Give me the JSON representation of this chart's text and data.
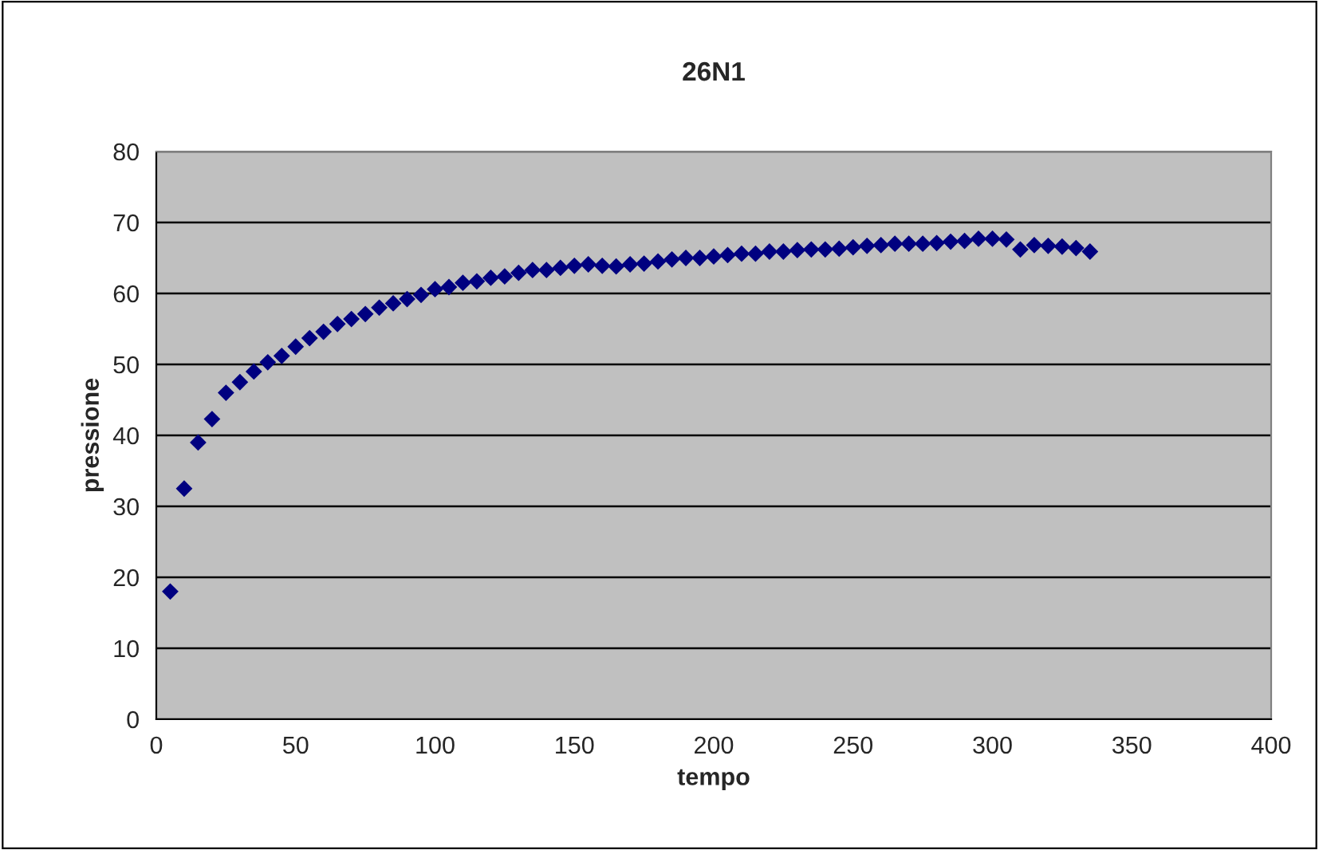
{
  "chart_data": {
    "type": "scatter",
    "title": "26N1",
    "xlabel": "tempo",
    "ylabel": "pressione",
    "x": [
      5,
      10,
      15,
      20,
      25,
      30,
      35,
      40,
      45,
      50,
      55,
      60,
      65,
      70,
      75,
      80,
      85,
      90,
      95,
      100,
      105,
      110,
      115,
      120,
      125,
      130,
      135,
      140,
      145,
      150,
      155,
      160,
      165,
      170,
      175,
      180,
      185,
      190,
      195,
      200,
      205,
      210,
      215,
      220,
      225,
      230,
      235,
      240,
      245,
      250,
      255,
      260,
      265,
      270,
      275,
      280,
      285,
      290,
      295,
      300,
      305,
      310,
      315,
      320,
      325,
      330,
      335
    ],
    "series": [
      {
        "color": "#000080",
        "values": [
          18,
          32.5,
          39,
          42.3,
          46,
          47.5,
          49,
          50.3,
          51.2,
          52.5,
          53.7,
          54.6,
          55.7,
          56.4,
          57.1,
          58,
          58.6,
          59.2,
          59.8,
          60.6,
          60.9,
          61.5,
          61.7,
          62.2,
          62.4,
          62.9,
          63.3,
          63.3,
          63.6,
          63.9,
          64.1,
          63.9,
          63.8,
          64.1,
          64.2,
          64.5,
          64.8,
          65,
          65,
          65.2,
          65.4,
          65.6,
          65.6,
          65.9,
          65.9,
          66.1,
          66.2,
          66.2,
          66.3,
          66.5,
          66.7,
          66.8,
          67,
          67,
          67,
          67.1,
          67.3,
          67.4,
          67.7,
          67.7,
          67.6,
          66.2,
          66.8,
          66.7,
          66.6,
          66.4,
          65.9
        ]
      }
    ],
    "xlim": [
      0,
      400
    ],
    "xticks": [
      0,
      50,
      100,
      150,
      200,
      250,
      300,
      350,
      400
    ],
    "ylim": [
      0,
      80
    ],
    "yticks": [
      0,
      10,
      20,
      30,
      40,
      50,
      60,
      70,
      80
    ],
    "grid": "y",
    "marker": "diamond",
    "legend": false
  }
}
